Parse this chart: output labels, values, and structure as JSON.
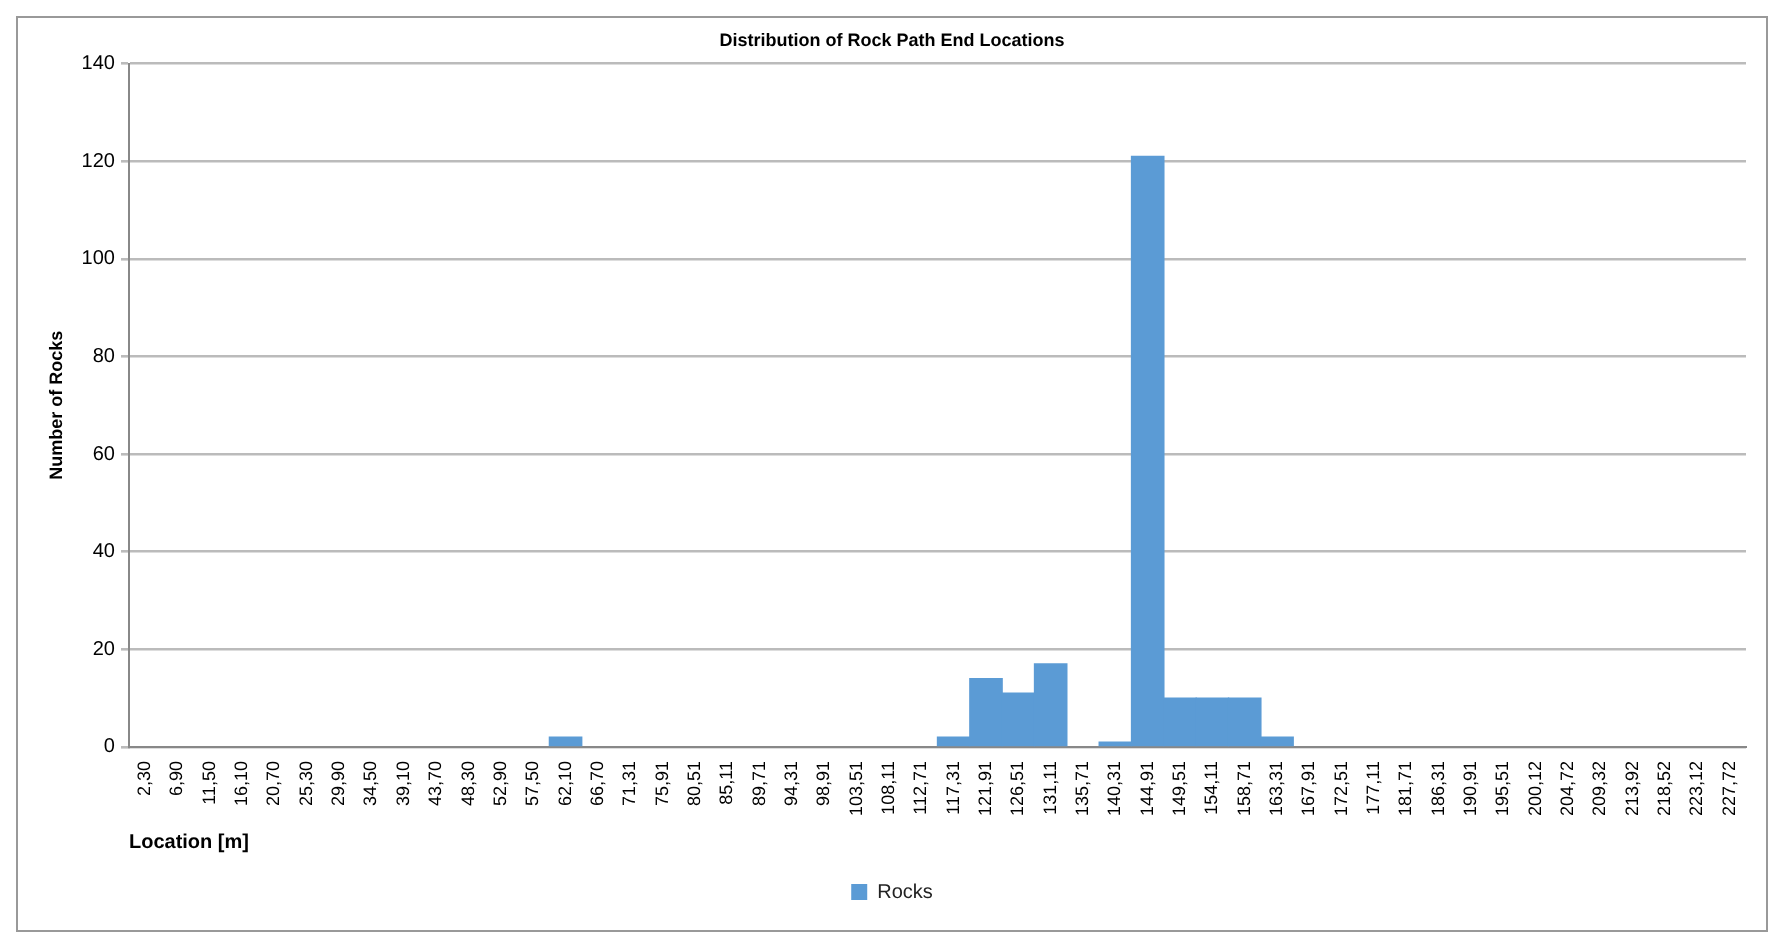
{
  "chart_data": {
    "type": "bar",
    "title": "Distribution of Rock Path End Locations",
    "xlabel": "Location [m]",
    "ylabel": "Number of Rocks",
    "categories": [
      "2,30",
      "6,90",
      "11,50",
      "16,10",
      "20,70",
      "25,30",
      "29,90",
      "34,50",
      "39,10",
      "43,70",
      "48,30",
      "52,90",
      "57,50",
      "62,10",
      "66,70",
      "71,31",
      "75,91",
      "80,51",
      "85,11",
      "89,71",
      "94,31",
      "98,91",
      "103,51",
      "108,11",
      "112,71",
      "117,31",
      "121,91",
      "126,51",
      "131,11",
      "135,71",
      "140,31",
      "144,91",
      "149,51",
      "154,11",
      "158,71",
      "163,31",
      "167,91",
      "172,51",
      "177,11",
      "181,71",
      "186,31",
      "190,91",
      "195,51",
      "200,12",
      "204,72",
      "209,32",
      "213,92",
      "218,52",
      "223,12",
      "227,72"
    ],
    "series": [
      {
        "name": "Rocks",
        "color": "#5b9bd5",
        "values": [
          null,
          null,
          null,
          null,
          null,
          null,
          null,
          null,
          null,
          null,
          null,
          null,
          null,
          2,
          null,
          null,
          null,
          null,
          null,
          null,
          null,
          null,
          null,
          null,
          null,
          2,
          14,
          11,
          17,
          null,
          1,
          121,
          10,
          10,
          10,
          2,
          null,
          null,
          null,
          null,
          null,
          null,
          null,
          null,
          null,
          null,
          null,
          null,
          null,
          null
        ]
      }
    ],
    "ylim": [
      0,
      140
    ],
    "yticks": [
      0,
      20,
      40,
      60,
      80,
      100,
      120,
      140
    ],
    "grid": "y",
    "legend": "bottom"
  }
}
